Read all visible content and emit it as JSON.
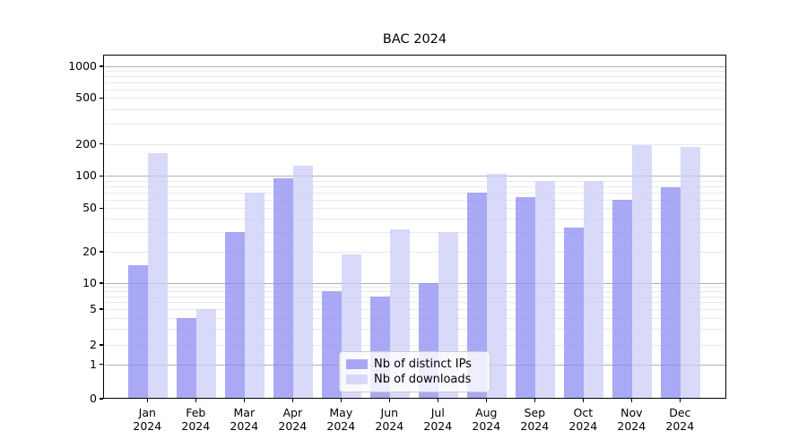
{
  "title": "BAC 2024",
  "chart_data": {
    "type": "bar",
    "title": "BAC 2024",
    "months": [
      "Jan",
      "Feb",
      "Mar",
      "Apr",
      "May",
      "Jun",
      "Jul",
      "Aug",
      "Sep",
      "Oct",
      "Nov",
      "Dec"
    ],
    "year": "2024",
    "series": [
      {
        "name": "Nb of distinct IPs",
        "color": "#8c8cf2",
        "values": [
          15,
          4,
          30,
          95,
          8,
          7,
          10,
          70,
          63,
          33,
          60,
          78
        ]
      },
      {
        "name": "Nb of downloads",
        "color": "#ccccf8",
        "values": [
          165,
          5,
          70,
          125,
          19,
          32,
          30,
          105,
          90,
          90,
          195,
          188
        ]
      }
    ],
    "y_ticks": [
      1000,
      500,
      200,
      100,
      50,
      20,
      10,
      5,
      2,
      1,
      0
    ],
    "yscale": "symlog",
    "ylim": [
      0,
      1300
    ],
    "grid": true,
    "legend_position": "lower center"
  },
  "colors": {
    "bar_alpha": 0.75,
    "grid_major": "#b0b0b0",
    "grid_minor": "#e9e9e9",
    "axis": "#000000",
    "legend_border": "#cccccc",
    "legend_bg": "rgba(255,255,255,0.8)"
  }
}
